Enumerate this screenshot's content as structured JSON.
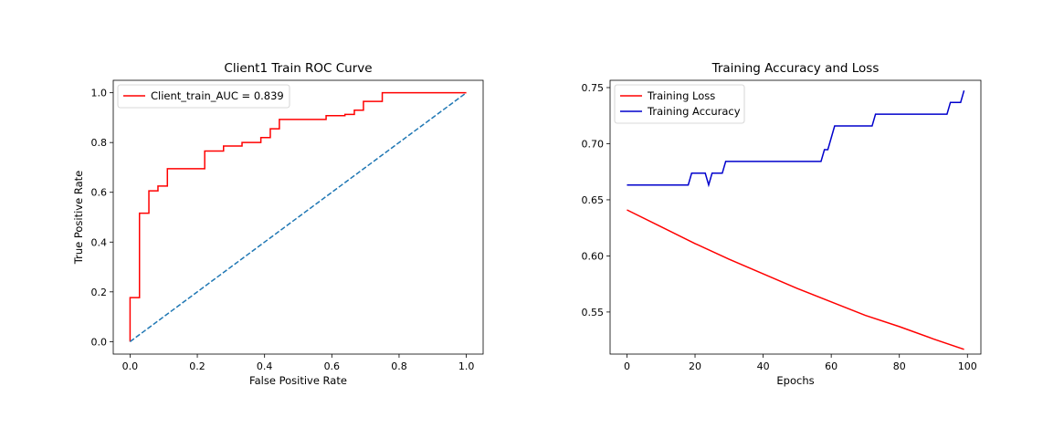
{
  "chart_data": [
    {
      "type": "line",
      "title": "Client1 Train ROC Curve",
      "xlabel": "False Positive Rate",
      "ylabel": "True Positive Rate",
      "xlim": [
        -0.05,
        1.05
      ],
      "ylim": [
        -0.05,
        1.05
      ],
      "xticks": [
        0.0,
        0.2,
        0.4,
        0.6,
        0.8,
        1.0
      ],
      "yticks": [
        0.0,
        0.2,
        0.4,
        0.6,
        0.8,
        1.0
      ],
      "xtick_labels": [
        "0.0",
        "0.2",
        "0.4",
        "0.6",
        "0.8",
        "1.0"
      ],
      "ytick_labels": [
        "0.0",
        "0.2",
        "0.4",
        "0.6",
        "0.8",
        "1.0"
      ],
      "legend_position": "upper-left",
      "grid": false,
      "series": [
        {
          "name": "Client_train_AUC = 0.839",
          "color": "#ff0000",
          "style": "solid",
          "x": [
            0.0,
            0.0,
            0.0,
            0.028,
            0.028,
            0.056,
            0.056,
            0.083,
            0.083,
            0.111,
            0.111,
            0.222,
            0.222,
            0.278,
            0.278,
            0.333,
            0.333,
            0.389,
            0.389,
            0.417,
            0.417,
            0.444,
            0.444,
            0.583,
            0.583,
            0.639,
            0.639,
            0.667,
            0.667,
            0.694,
            0.694,
            0.75,
            0.75,
            1.0
          ],
          "y": [
            0.0,
            0.177,
            0.177,
            0.177,
            0.516,
            0.516,
            0.606,
            0.606,
            0.625,
            0.625,
            0.695,
            0.695,
            0.766,
            0.766,
            0.786,
            0.786,
            0.8,
            0.8,
            0.82,
            0.82,
            0.855,
            0.855,
            0.893,
            0.893,
            0.908,
            0.908,
            0.913,
            0.913,
            0.93,
            0.93,
            0.965,
            0.965,
            1.0,
            1.0
          ]
        },
        {
          "name": "",
          "color": "#1f77b4",
          "style": "dashed",
          "x": [
            0,
            1
          ],
          "y": [
            0,
            1
          ]
        }
      ]
    },
    {
      "type": "line",
      "title": "Training Accuracy and Loss",
      "xlabel": "Epochs",
      "ylabel": "",
      "xlim": [
        -4.95,
        103.95
      ],
      "ylim": [
        0.5125,
        0.7565
      ],
      "xticks": [
        0,
        20,
        40,
        60,
        80,
        100
      ],
      "yticks": [
        0.55,
        0.6,
        0.65,
        0.7,
        0.75
      ],
      "xtick_labels": [
        "0",
        "20",
        "40",
        "60",
        "80",
        "100"
      ],
      "ytick_labels": [
        "0.55",
        "0.60",
        "0.65",
        "0.70",
        "0.75"
      ],
      "legend_position": "upper-left",
      "grid": false,
      "series": [
        {
          "name": "Training Loss",
          "color": "#ff0000",
          "style": "solid",
          "x": [
            0,
            10,
            20,
            30,
            40,
            50,
            60,
            70,
            80,
            90,
            99
          ],
          "y": [
            0.641,
            0.626,
            0.611,
            0.597,
            0.584,
            0.571,
            0.559,
            0.547,
            0.537,
            0.526,
            0.5167
          ]
        },
        {
          "name": "Training Accuracy",
          "color": "#0000cc",
          "style": "solid",
          "x": [
            0,
            18,
            19,
            23,
            24,
            25,
            28,
            29,
            57,
            58,
            59,
            61,
            72,
            73,
            94,
            95,
            98,
            99
          ],
          "y": [
            0.6632,
            0.6632,
            0.6737,
            0.6737,
            0.6632,
            0.6737,
            0.6737,
            0.6842,
            0.6842,
            0.6947,
            0.6947,
            0.7158,
            0.7158,
            0.7263,
            0.7263,
            0.7368,
            0.7368,
            0.7474
          ]
        }
      ]
    }
  ]
}
